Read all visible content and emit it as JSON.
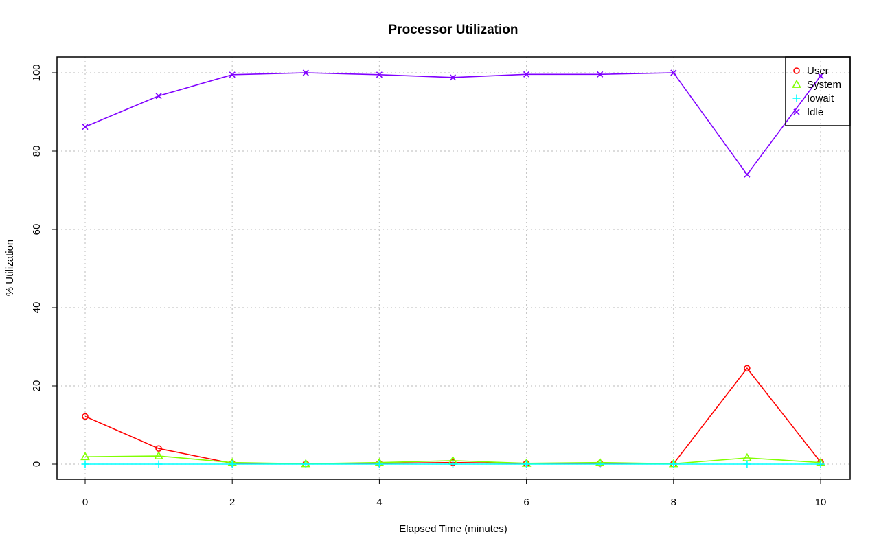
{
  "chart_data": {
    "type": "line",
    "title": "Processor Utilization",
    "xlabel": "Elapsed Time (minutes)",
    "ylabel": "% Utilization",
    "x": [
      0,
      1,
      2,
      3,
      4,
      5,
      6,
      7,
      8,
      9,
      10
    ],
    "xlim": [
      0,
      10
    ],
    "ylim": [
      0,
      100
    ],
    "xticks": [
      "0",
      "2",
      "4",
      "6",
      "8",
      "10"
    ],
    "yticks": [
      "0",
      "20",
      "40",
      "60",
      "80",
      "100"
    ],
    "grid": true,
    "legend_position": "top-right",
    "series": [
      {
        "name": "User",
        "color": "#ff0000",
        "marker": "circle",
        "values": [
          12.2,
          4.0,
          0.2,
          0.1,
          0.2,
          0.4,
          0.2,
          0.2,
          0.1,
          24.5,
          0.5
        ]
      },
      {
        "name": "System",
        "color": "#80ff00",
        "marker": "triangle",
        "values": [
          1.9,
          2.1,
          0.4,
          0.1,
          0.4,
          0.9,
          0.2,
          0.4,
          0.1,
          1.6,
          0.4
        ]
      },
      {
        "name": "Iowait",
        "color": "#00ffff",
        "marker": "plus",
        "values": [
          0,
          0,
          0,
          0,
          0,
          0,
          0,
          0,
          0,
          0,
          0
        ]
      },
      {
        "name": "Idle",
        "color": "#8000ff",
        "marker": "cross",
        "values": [
          86.2,
          94.1,
          99.5,
          100.0,
          99.5,
          98.8,
          99.6,
          99.6,
          100.0,
          74.0,
          99.2
        ]
      }
    ]
  }
}
